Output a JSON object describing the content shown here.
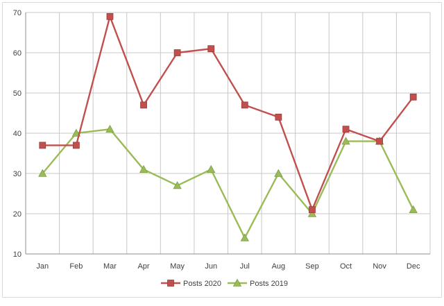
{
  "chart_data": {
    "type": "line",
    "title": "",
    "xlabel": "",
    "ylabel": "",
    "categories": [
      "Jan",
      "Feb",
      "Mar",
      "Apr",
      "May",
      "Jun",
      "Jul",
      "Aug",
      "Sep",
      "Oct",
      "Nov",
      "Dec"
    ],
    "ylim": [
      10,
      70
    ],
    "yticks": [
      10,
      20,
      30,
      40,
      50,
      60,
      70
    ],
    "grid": true,
    "legend_position": "bottom",
    "series": [
      {
        "name": "Posts 2020",
        "color": "#c0504d",
        "marker": "square",
        "values": [
          37,
          37,
          69,
          47,
          60,
          61,
          47,
          44,
          21,
          41,
          38,
          49
        ]
      },
      {
        "name": "Posts 2019",
        "color": "#9bbb59",
        "marker": "triangle",
        "values": [
          30,
          40,
          41,
          31,
          27,
          31,
          14,
          30,
          20,
          38,
          38,
          21
        ]
      }
    ]
  }
}
